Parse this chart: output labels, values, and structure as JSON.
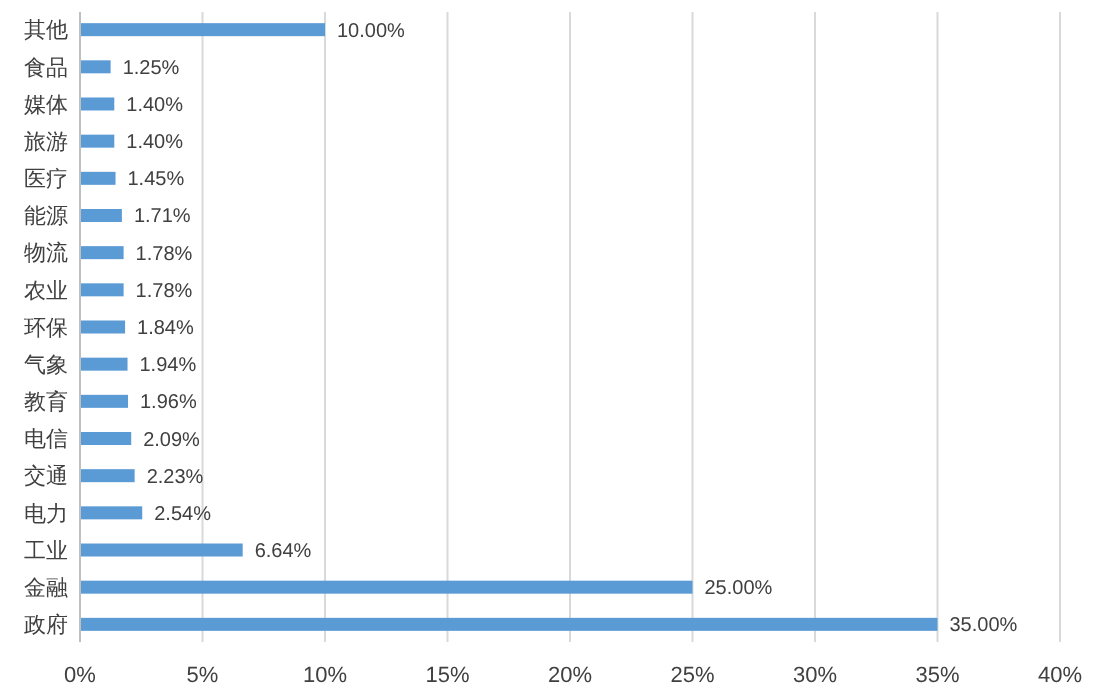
{
  "chart_data": {
    "type": "bar",
    "orientation": "horizontal",
    "categories": [
      "其他",
      "食品",
      "媒体",
      "旅游",
      "医疗",
      "能源",
      "物流",
      "农业",
      "环保",
      "气象",
      "教育",
      "电信",
      "交通",
      "电力",
      "工业",
      "金融",
      "政府"
    ],
    "values": [
      10,
      1.25,
      1.4,
      1.4,
      1.45,
      1.71,
      1.78,
      1.78,
      1.84,
      1.94,
      1.96,
      2.09,
      2.23,
      2.54,
      6.64,
      25,
      35
    ],
    "value_labels": [
      "10.00%",
      "1.25%",
      "1.40%",
      "1.40%",
      "1.45%",
      "1.71%",
      "1.78%",
      "1.78%",
      "1.84%",
      "1.94%",
      "1.96%",
      "2.09%",
      "2.23%",
      "2.54%",
      "6.64%",
      "25.00%",
      "35.00%"
    ],
    "color": "#5b9bd5",
    "xlim": [
      0,
      40
    ],
    "xticks": [
      {
        "value": 0,
        "label": "0%"
      },
      {
        "value": 5,
        "label": "5%"
      },
      {
        "value": 10,
        "label": "10%"
      },
      {
        "value": 15,
        "label": "15%"
      },
      {
        "value": 20,
        "label": "20%"
      },
      {
        "value": 25,
        "label": "25%"
      },
      {
        "value": 30,
        "label": "30%"
      },
      {
        "value": 35,
        "label": "35%"
      },
      {
        "value": 40,
        "label": "40%"
      }
    ],
    "grid": "x"
  }
}
